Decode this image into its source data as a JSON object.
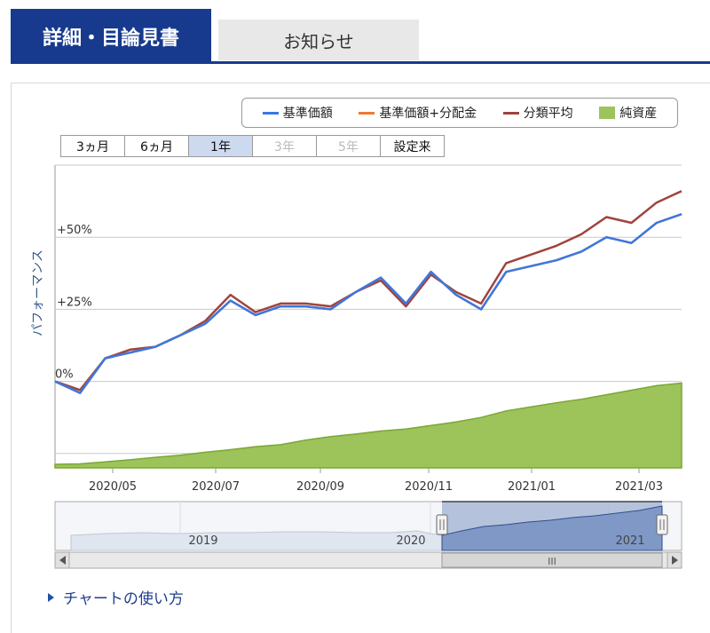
{
  "tabs": [
    {
      "label": "詳細・目論見書",
      "active": true
    },
    {
      "label": "お知らせ",
      "active": false
    }
  ],
  "range_buttons": [
    {
      "label": "3ヵ月",
      "state": "normal"
    },
    {
      "label": "6ヵ月",
      "state": "normal"
    },
    {
      "label": "1年",
      "state": "selected"
    },
    {
      "label": "3年",
      "state": "disabled"
    },
    {
      "label": "5年",
      "state": "disabled"
    },
    {
      "label": "設定来",
      "state": "normal"
    }
  ],
  "howto_link": "チャートの使い方",
  "navigator": {
    "year_labels": [
      "2019",
      "2020",
      "2021"
    ],
    "scroll_grip": "III"
  },
  "colors": {
    "nav": "#3a78e0",
    "dividend": "#ee7a33",
    "category": "#a0433e",
    "assets_fill": "#9cc45b",
    "assets_stroke": "#7ca634",
    "tab_active": "#173a8e"
  },
  "chart_data": {
    "type": "line",
    "ylabel": "パフォーマンス",
    "y_ticks": [
      "+50%",
      "+25%",
      "0%"
    ],
    "y_tick_values": [
      50,
      25,
      0
    ],
    "x_ticks": [
      "2020/05",
      "2020/07",
      "2020/09",
      "2020/11",
      "2021/01",
      "2021/03"
    ],
    "ylim": [
      -30,
      75
    ],
    "grid": true,
    "legend_position": "top-right",
    "legend": [
      "基準価額",
      "基準価額+分配金",
      "分類平均",
      "純資産"
    ],
    "x": [
      "2020/04",
      "2020/04",
      "2020/04",
      "2020/05",
      "2020/05",
      "2020/06",
      "2020/06",
      "2020/06",
      "2020/07",
      "2020/07",
      "2020/08",
      "2020/08",
      "2020/09",
      "2020/09",
      "2020/10",
      "2020/10",
      "2020/11",
      "2020/11",
      "2020/12",
      "2020/12",
      "2021/01",
      "2021/01",
      "2021/02",
      "2021/02",
      "2021/03",
      "2021/03"
    ],
    "series": [
      {
        "name": "基準価額",
        "color": "#3a78e0",
        "values": [
          0,
          -4,
          8,
          10,
          12,
          16,
          20,
          28,
          23,
          26,
          26,
          25,
          31,
          36,
          27,
          38,
          30,
          25,
          38,
          40,
          42,
          45,
          50,
          48,
          55,
          58
        ]
      },
      {
        "name": "基準価額+分配金",
        "color": "#ee7a33",
        "values": [
          0,
          -4,
          8,
          10,
          12,
          16,
          20,
          28,
          23,
          26,
          26,
          25,
          31,
          36,
          27,
          38,
          30,
          25,
          38,
          40,
          42,
          45,
          50,
          48,
          55,
          58
        ]
      },
      {
        "name": "分類平均",
        "color": "#a0433e",
        "values": [
          0,
          -3,
          8,
          11,
          12,
          16,
          21,
          30,
          24,
          27,
          27,
          26,
          31,
          35,
          26,
          37,
          31,
          27,
          41,
          44,
          47,
          51,
          57,
          55,
          62,
          66
        ]
      },
      {
        "name": "純資産",
        "color": "#9cc45b",
        "type": "area",
        "values": [
          0.7,
          0.8,
          1.2,
          1.6,
          2.1,
          2.5,
          3.1,
          3.6,
          4.2,
          4.6,
          5.5,
          6.2,
          6.7,
          7.3,
          7.7,
          8.4,
          9.1,
          10.0,
          11.3,
          12.1,
          12.9,
          13.6,
          14.5,
          15.4,
          16.3,
          16.8
        ]
      }
    ]
  }
}
